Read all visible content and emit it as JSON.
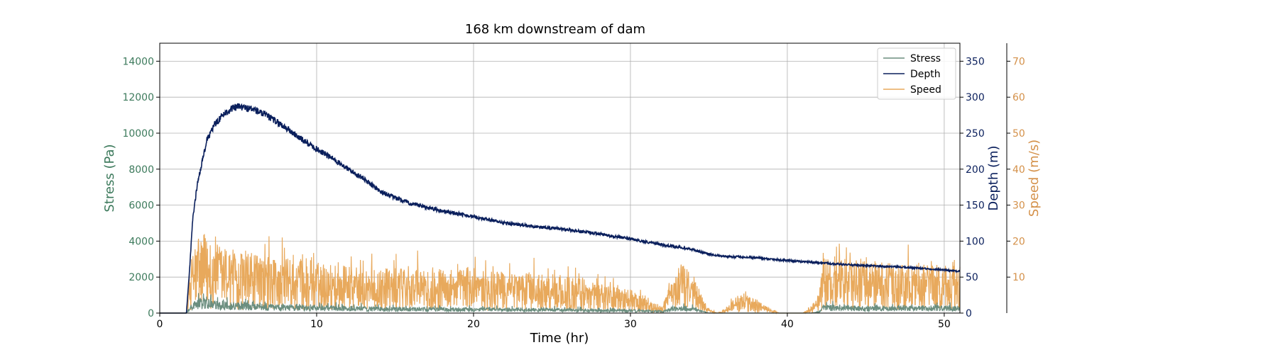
{
  "chart_data": {
    "type": "line",
    "title": "168 km downstream of dam",
    "xlabel": "Time (hr)",
    "xlim": [
      0,
      51
    ],
    "xticks": [
      0,
      10,
      20,
      30,
      40,
      50
    ],
    "grid": true,
    "legend": {
      "placement": "top-right",
      "entries": [
        "Stress",
        "Depth",
        "Speed"
      ]
    },
    "axes": {
      "stress": {
        "label": "Stress (Pa)",
        "ylim": [
          0,
          15000
        ],
        "ticks": [
          0,
          2000,
          4000,
          6000,
          8000,
          10000,
          12000,
          14000
        ],
        "color": "#3d7a5c"
      },
      "depth": {
        "label": "Depth (m)",
        "ylim": [
          0,
          375
        ],
        "ticks": [
          0,
          50,
          100,
          150,
          200,
          250,
          300,
          350
        ],
        "color": "#0a1f5c"
      },
      "speed": {
        "label": "Speed (m/s)",
        "ylim": [
          0,
          75
        ],
        "ticks": [
          10,
          20,
          30,
          40,
          50,
          60,
          70
        ],
        "color": "#d4914a"
      }
    },
    "series": [
      {
        "name": "Stress",
        "axis": "stress",
        "color": "#6b8e7f",
        "x": [
          0,
          1.7,
          2.0,
          2.5,
          3,
          4,
          5,
          6,
          8,
          10,
          12,
          14,
          16,
          18,
          20,
          22,
          24,
          26,
          28,
          30,
          31,
          32,
          33,
          34,
          35,
          36,
          38,
          40,
          41.5,
          42,
          42.3,
          44,
          46,
          48,
          48.5,
          50,
          51
        ],
        "y": [
          0,
          0,
          300,
          550,
          500,
          420,
          380,
          330,
          300,
          270,
          250,
          220,
          210,
          200,
          190,
          180,
          170,
          160,
          140,
          120,
          100,
          90,
          280,
          200,
          0,
          0,
          0,
          0,
          0,
          50,
          280,
          270,
          250,
          230,
          280,
          260,
          250
        ],
        "noise": 0.6
      },
      {
        "name": "Depth",
        "axis": "depth",
        "color": "#0a1f5c",
        "x": [
          0,
          1.7,
          1.9,
          2.1,
          2.4,
          2.7,
          3,
          3.5,
          4,
          4.5,
          5,
          6,
          7,
          8,
          9,
          10,
          11,
          12,
          13,
          14,
          15,
          16,
          18,
          20,
          22,
          24,
          26,
          28,
          30,
          31,
          32,
          33,
          34,
          35,
          36,
          38,
          40,
          42,
          44,
          46,
          48,
          50,
          51
        ],
        "y": [
          0,
          0,
          60,
          130,
          180,
          210,
          240,
          262,
          275,
          283,
          287,
          283,
          272,
          258,
          242,
          228,
          215,
          200,
          187,
          170,
          160,
          152,
          142,
          134,
          125,
          120,
          116,
          110,
          103,
          99,
          95,
          92,
          88,
          82,
          79,
          77,
          73,
          70,
          67,
          65,
          63,
          60,
          58
        ],
        "noise": 0.018
      },
      {
        "name": "Speed",
        "axis": "speed",
        "color": "#e8a95c",
        "x": [
          0,
          1.7,
          2.0,
          2.5,
          3,
          4,
          5,
          6,
          8,
          10,
          12,
          14,
          16,
          18,
          20,
          22,
          24,
          26,
          28,
          30,
          31,
          32,
          32.5,
          33,
          34,
          34.8,
          35.5,
          36,
          37,
          38,
          39,
          39.5,
          40,
          41,
          41.5,
          42,
          42.3,
          44,
          46,
          48,
          48.5,
          50,
          51
        ],
        "y": [
          0,
          0,
          8,
          12,
          11,
          10,
          9,
          8.5,
          8,
          7.5,
          7,
          6.5,
          6.5,
          6.5,
          6.5,
          6,
          6,
          5.5,
          4.5,
          3.5,
          2,
          1,
          4,
          8,
          6,
          1,
          0,
          0.5,
          3,
          2,
          0.5,
          0,
          0,
          0,
          1,
          3,
          8,
          8,
          7.5,
          7,
          7.5,
          7,
          7
        ],
        "noise": 0.9
      }
    ]
  }
}
